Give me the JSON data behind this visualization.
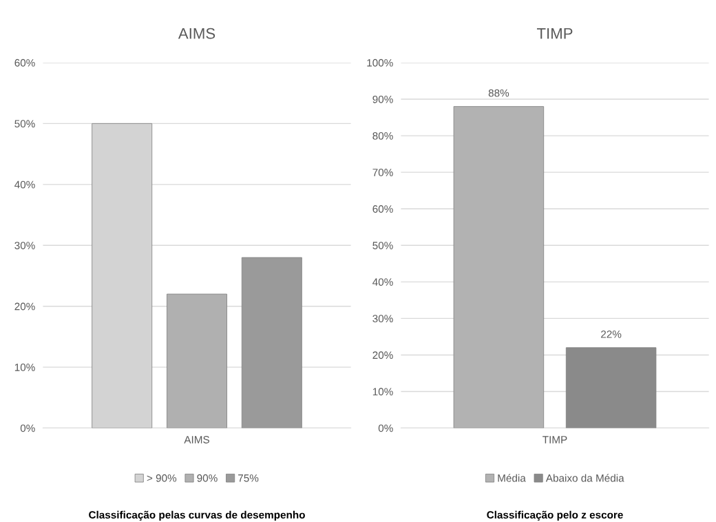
{
  "chart_data": [
    {
      "type": "bar",
      "title": "AIMS",
      "categories": [
        "AIMS"
      ],
      "series": [
        {
          "name": "> 90%",
          "color": "#d3d3d3",
          "values": [
            50
          ]
        },
        {
          "name": "90%",
          "color": "#b0b0b0",
          "values": [
            22
          ]
        },
        {
          "name": "75%",
          "color": "#9a9a9a",
          "values": [
            28
          ]
        }
      ],
      "ylim": [
        0,
        60
      ],
      "yticks": [
        {
          "value": 0,
          "label": "0%"
        },
        {
          "value": 10,
          "label": "10%"
        },
        {
          "value": 20,
          "label": "20%"
        },
        {
          "value": 30,
          "label": "30%"
        },
        {
          "value": 40,
          "label": "40%"
        },
        {
          "value": 50,
          "label": "50%"
        },
        {
          "value": 60,
          "label": "60%"
        }
      ],
      "grid": "y",
      "legend": "bottom",
      "annotations": [
        "Classificação pelas curvas de desempenho"
      ]
    },
    {
      "type": "bar",
      "title": "TIMP",
      "categories": [
        "TIMP"
      ],
      "series": [
        {
          "name": "Média",
          "color": "#b2b2b2",
          "values": [
            88
          ],
          "value_labels": [
            "88%"
          ]
        },
        {
          "name": "Abaixo da Média",
          "color": "#8a8a8a",
          "values": [
            22
          ],
          "value_labels": [
            "22%"
          ]
        }
      ],
      "ylim": [
        0,
        100
      ],
      "yticks": [
        {
          "value": 0,
          "label": "0%"
        },
        {
          "value": 10,
          "label": "10%"
        },
        {
          "value": 20,
          "label": "20%"
        },
        {
          "value": 30,
          "label": "30%"
        },
        {
          "value": 40,
          "label": "40%"
        },
        {
          "value": 50,
          "label": "50%"
        },
        {
          "value": 60,
          "label": "60%"
        },
        {
          "value": 70,
          "label": "70%"
        },
        {
          "value": 80,
          "label": "80%"
        },
        {
          "value": 90,
          "label": "90%"
        },
        {
          "value": 100,
          "label": "100%"
        }
      ],
      "grid": "y",
      "legend": "bottom",
      "annotations": [
        "Classificação pelo z escore"
      ]
    }
  ]
}
